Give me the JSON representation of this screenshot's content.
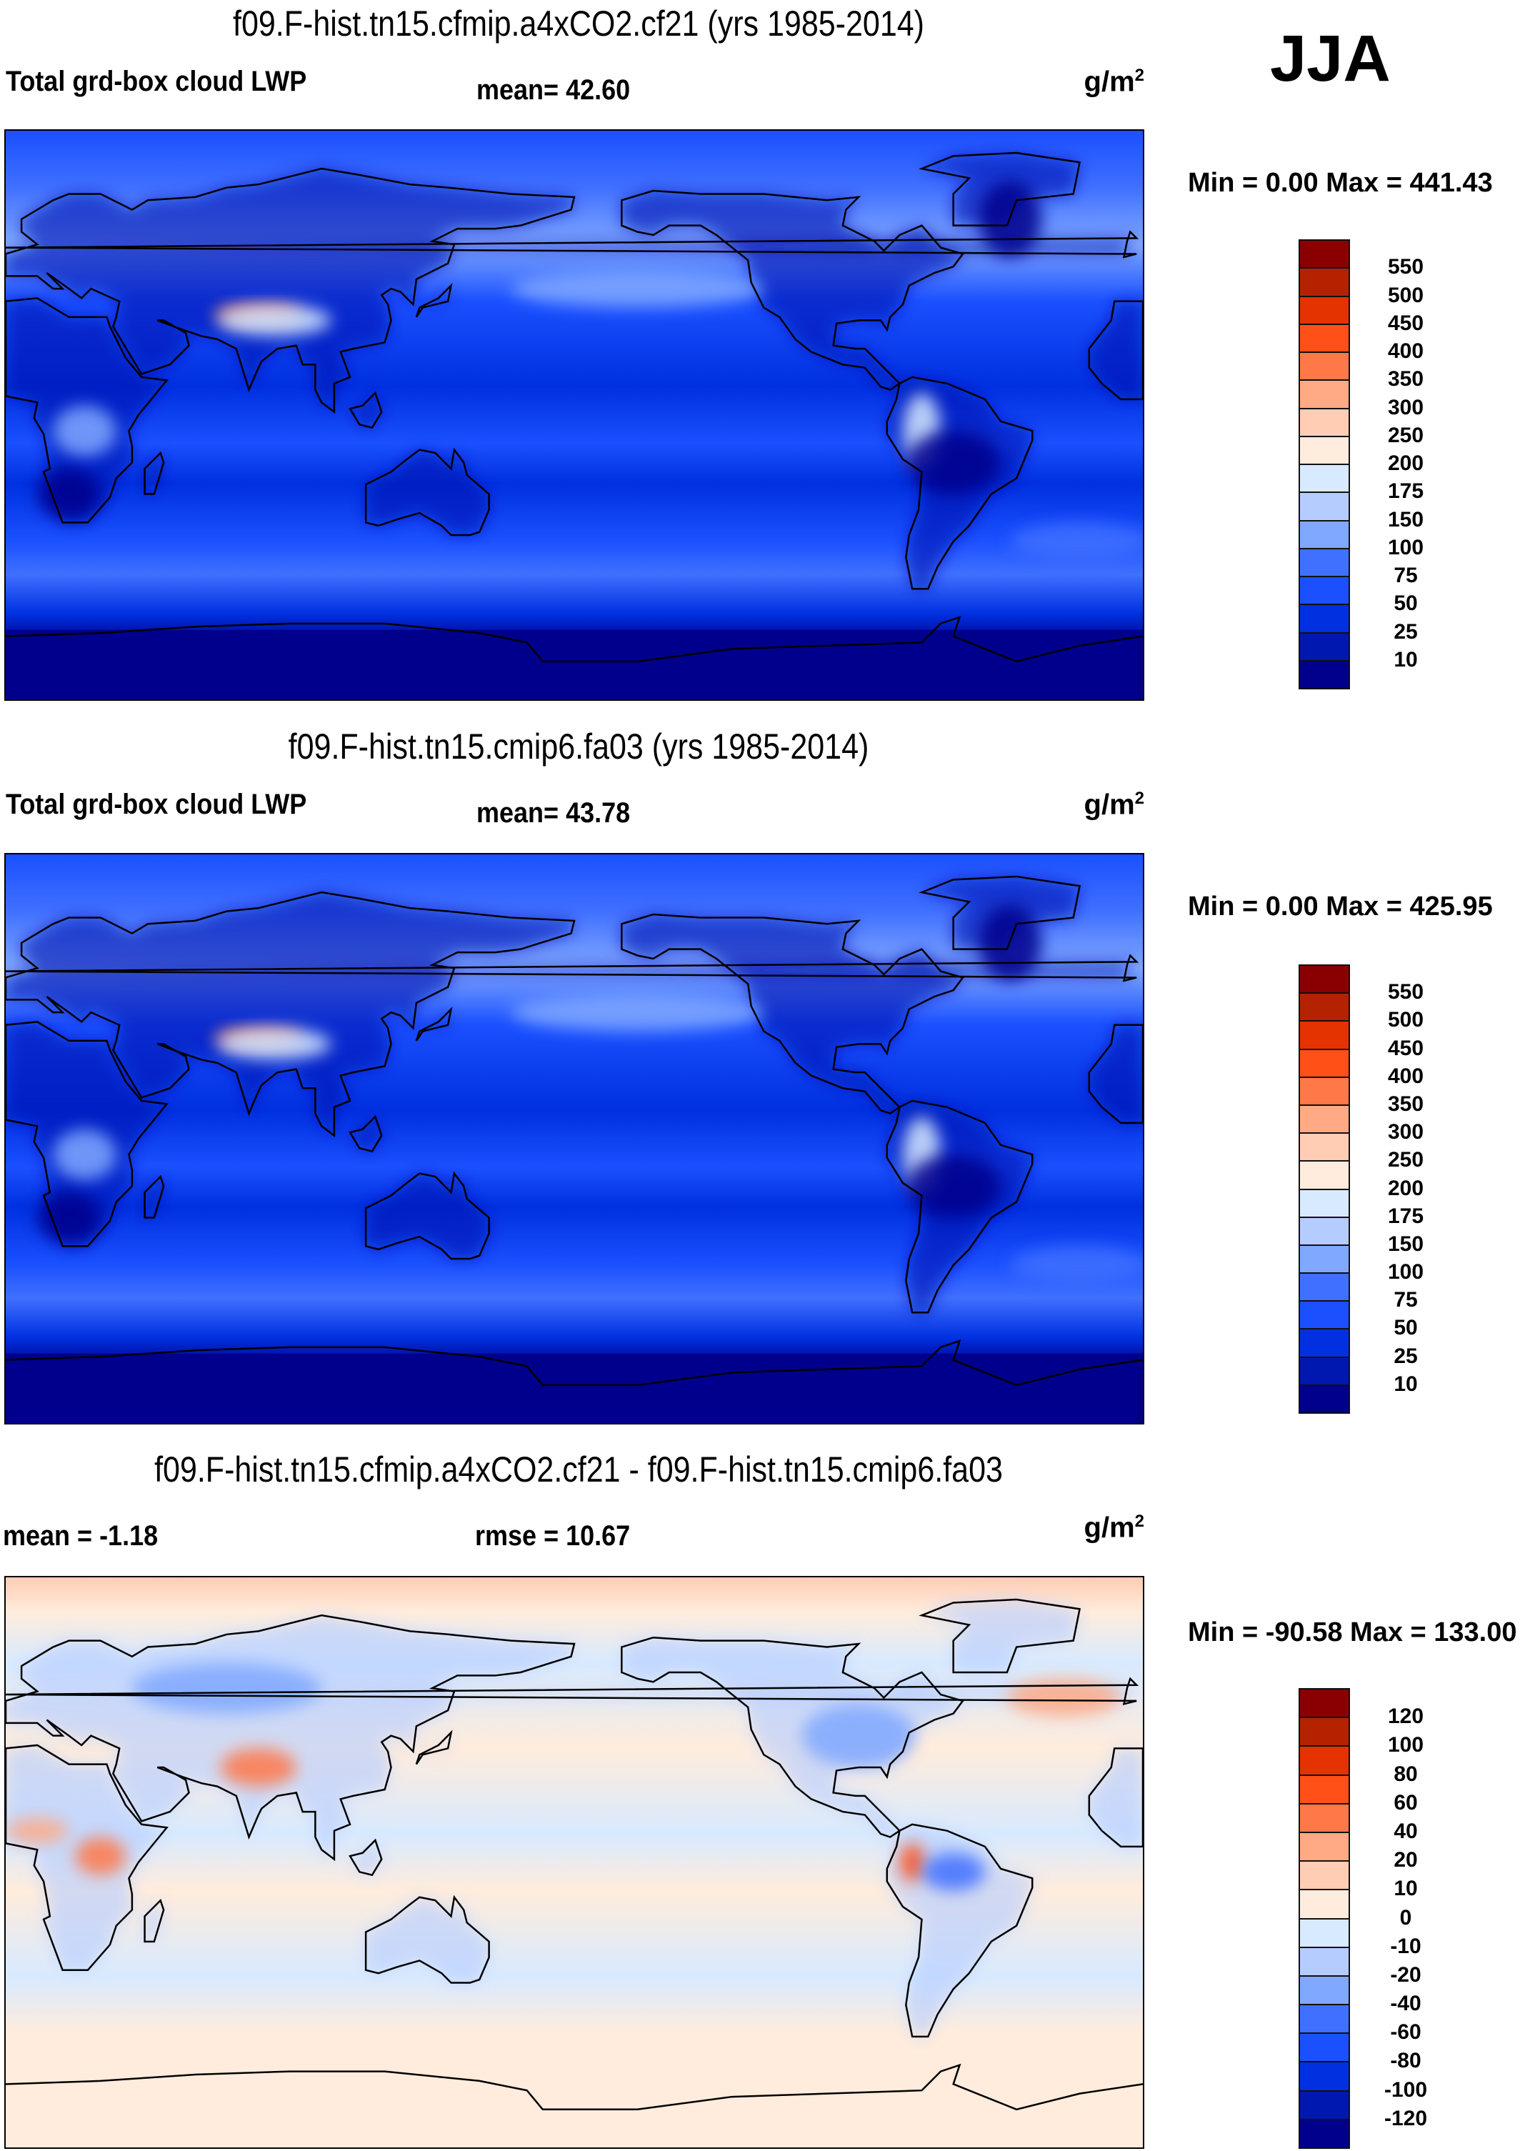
{
  "season": "JJA",
  "colors": {
    "levels16": [
      "#00008c",
      "#0018b0",
      "#0030e0",
      "#1a50ff",
      "#4070ff",
      "#80a8ff",
      "#b4ccff",
      "#d8eaff",
      "#ffecdc",
      "#ffccb4",
      "#ffaa84",
      "#ff7848",
      "#ff5018",
      "#e43200",
      "#b42200",
      "#8a0000"
    ]
  },
  "chart_data": [
    {
      "type": "heatmap",
      "title": "f09.F-hist.tn15.cfmip.a4xCO2.cf21 (yrs 1985-2014)",
      "variable": "Total grd-box cloud LWP",
      "stat_text": "mean=  42.60",
      "mean": 42.6,
      "units_base": "g/m",
      "units_exp": "2",
      "minmax_text": "Min =   0.00 Max = 441.43",
      "min": 0.0,
      "max": 441.43,
      "colorbar_levels": [
        "550",
        "500",
        "450",
        "400",
        "350",
        "300",
        "250",
        "200",
        "175",
        "150",
        "100",
        "75",
        "50",
        "25",
        "10"
      ],
      "projection": "cylindrical equidistant, centered 180",
      "xlim": [
        0,
        360
      ],
      "ylim": [
        -90,
        90
      ]
    },
    {
      "type": "heatmap",
      "title": "f09.F-hist.tn15.cmip6.fa03 (yrs 1985-2014)",
      "variable": "Total grd-box cloud LWP",
      "stat_text": "mean=  43.78",
      "mean": 43.78,
      "units_base": "g/m",
      "units_exp": "2",
      "minmax_text": "Min =   0.00 Max = 425.95",
      "min": 0.0,
      "max": 425.95,
      "colorbar_levels": [
        "550",
        "500",
        "450",
        "400",
        "350",
        "300",
        "250",
        "200",
        "175",
        "150",
        "100",
        "75",
        "50",
        "25",
        "10"
      ],
      "projection": "cylindrical equidistant, centered 180",
      "xlim": [
        0,
        360
      ],
      "ylim": [
        -90,
        90
      ]
    },
    {
      "type": "heatmap",
      "title": "f09.F-hist.tn15.cfmip.a4xCO2.cf21 - f09.F-hist.tn15.cmip6.fa03",
      "variable": "mean =  -1.18",
      "stat_text": "rmse =  10.67",
      "mean": -1.18,
      "rmse": 10.67,
      "units_base": "g/m",
      "units_exp": "2",
      "minmax_text": "Min = -90.58 Max = 133.00",
      "min": -90.58,
      "max": 133.0,
      "colorbar_levels": [
        "120",
        "100",
        "80",
        "60",
        "40",
        "20",
        "10",
        "0",
        "-10",
        "-20",
        "-40",
        "-60",
        "-80",
        "-100",
        "-120"
      ],
      "projection": "cylindrical equidistant, centered 180",
      "xlim": [
        0,
        360
      ],
      "ylim": [
        -90,
        90
      ]
    }
  ]
}
